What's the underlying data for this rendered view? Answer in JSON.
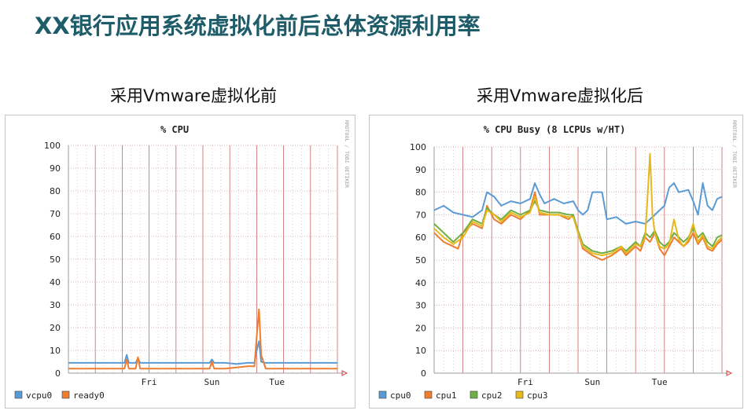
{
  "slide": {
    "title": "XX银行应用系统虚拟化前后总体资源利用率",
    "left_caption": "采用Vmware虚拟化前",
    "right_caption": "采用Vmware虚拟化后"
  },
  "watermark": "RRDTOOL / TOBI OETIKER",
  "colors": {
    "background": "#ffffff",
    "plot_background": "#ffffff",
    "grid": "#c9a0a0",
    "axis": "#9c9c9c",
    "title_text": "#1f5c69"
  },
  "chart_data": [
    {
      "type": "line",
      "title": "% CPU",
      "xlabel": "",
      "ylabel": "",
      "ylim": [
        0,
        100
      ],
      "yticks": [
        0,
        10,
        20,
        30,
        40,
        50,
        60,
        70,
        80,
        90,
        100
      ],
      "xlim": [
        0,
        120
      ],
      "x_tick_labels": [
        {
          "label": "Fri",
          "x": 36
        },
        {
          "label": "Sun",
          "x": 64
        },
        {
          "label": "Tue",
          "x": 93
        }
      ],
      "grid": true,
      "legend_position": "bottom-left",
      "series": [
        {
          "name": "vcpu0",
          "color": "#5b9bd5",
          "points": [
            [
              0,
              4.5
            ],
            [
              10,
              4.5
            ],
            [
              20,
              4.5
            ],
            [
              25,
              4.5
            ],
            [
              26,
              8
            ],
            [
              27,
              4.5
            ],
            [
              30,
              4.5
            ],
            [
              31,
              6.5
            ],
            [
              32,
              4.5
            ],
            [
              40,
              4.5
            ],
            [
              50,
              4.5
            ],
            [
              60,
              4.5
            ],
            [
              63,
              4.5
            ],
            [
              64,
              6
            ],
            [
              65,
              4.5
            ],
            [
              70,
              4.5
            ],
            [
              75,
              4
            ],
            [
              80,
              4.5
            ],
            [
              83,
              4.5
            ],
            [
              84,
              10
            ],
            [
              85,
              14
            ],
            [
              86,
              5
            ],
            [
              88,
              4.5
            ],
            [
              95,
              4.5
            ],
            [
              100,
              4.5
            ],
            [
              110,
              4.5
            ],
            [
              120,
              4.5
            ]
          ]
        },
        {
          "name": "ready0",
          "color": "#ed7d31",
          "points": [
            [
              0,
              2
            ],
            [
              10,
              2
            ],
            [
              20,
              2
            ],
            [
              25,
              2
            ],
            [
              26,
              6
            ],
            [
              27,
              2
            ],
            [
              30,
              2
            ],
            [
              31,
              7
            ],
            [
              32,
              2
            ],
            [
              40,
              2
            ],
            [
              50,
              2
            ],
            [
              60,
              2
            ],
            [
              63,
              2
            ],
            [
              64,
              5
            ],
            [
              65,
              2
            ],
            [
              70,
              2
            ],
            [
              75,
              2.5
            ],
            [
              80,
              3
            ],
            [
              83,
              3
            ],
            [
              84,
              16
            ],
            [
              85,
              28
            ],
            [
              86,
              8
            ],
            [
              88,
              2
            ],
            [
              95,
              2
            ],
            [
              100,
              2
            ],
            [
              110,
              2
            ],
            [
              120,
              2
            ]
          ]
        }
      ]
    },
    {
      "type": "line",
      "title": "% CPU Busy (8 LCPUs w/HT)",
      "xlabel": "",
      "ylabel": "",
      "ylim": [
        0,
        100
      ],
      "yticks": [
        0,
        10,
        20,
        30,
        40,
        50,
        60,
        70,
        80,
        90,
        100
      ],
      "xlim": [
        0,
        120
      ],
      "x_tick_labels": [
        {
          "label": "Fri",
          "x": 38
        },
        {
          "label": "Sun",
          "x": 66
        },
        {
          "label": "Tue",
          "x": 94
        }
      ],
      "grid": true,
      "legend_position": "bottom-left",
      "series": [
        {
          "name": "cpu0",
          "color": "#5b9bd5",
          "points": [
            [
              0,
              72
            ],
            [
              4,
              74
            ],
            [
              8,
              71
            ],
            [
              12,
              70
            ],
            [
              16,
              69
            ],
            [
              20,
              72
            ],
            [
              22,
              80
            ],
            [
              25,
              78
            ],
            [
              28,
              74
            ],
            [
              32,
              76
            ],
            [
              36,
              75
            ],
            [
              40,
              77
            ],
            [
              42,
              84
            ],
            [
              44,
              79
            ],
            [
              46,
              75
            ],
            [
              50,
              77
            ],
            [
              54,
              75
            ],
            [
              58,
              76
            ],
            [
              60,
              72
            ],
            [
              62,
              70
            ],
            [
              64,
              72
            ],
            [
              66,
              80
            ],
            [
              70,
              80
            ],
            [
              72,
              68
            ],
            [
              76,
              69
            ],
            [
              80,
              66
            ],
            [
              84,
              67
            ],
            [
              88,
              66
            ],
            [
              92,
              70
            ],
            [
              94,
              72
            ],
            [
              96,
              74
            ],
            [
              98,
              82
            ],
            [
              100,
              84
            ],
            [
              102,
              80
            ],
            [
              106,
              81
            ],
            [
              108,
              76
            ],
            [
              110,
              70
            ],
            [
              112,
              84
            ],
            [
              114,
              74
            ],
            [
              116,
              72
            ],
            [
              118,
              77
            ],
            [
              120,
              78
            ]
          ]
        },
        {
          "name": "cpu1",
          "color": "#ed7d31",
          "points": [
            [
              0,
              62
            ],
            [
              4,
              58
            ],
            [
              8,
              56
            ],
            [
              10,
              55
            ],
            [
              12,
              62
            ],
            [
              16,
              66
            ],
            [
              20,
              64
            ],
            [
              22,
              74
            ],
            [
              25,
              68
            ],
            [
              28,
              66
            ],
            [
              32,
              70
            ],
            [
              36,
              68
            ],
            [
              40,
              72
            ],
            [
              42,
              80
            ],
            [
              44,
              70
            ],
            [
              48,
              70
            ],
            [
              52,
              70
            ],
            [
              56,
              68
            ],
            [
              58,
              70
            ],
            [
              60,
              62
            ],
            [
              62,
              55
            ],
            [
              66,
              52
            ],
            [
              70,
              50
            ],
            [
              74,
              52
            ],
            [
              78,
              55
            ],
            [
              80,
              52
            ],
            [
              84,
              56
            ],
            [
              86,
              54
            ],
            [
              88,
              60
            ],
            [
              90,
              58
            ],
            [
              92,
              62
            ],
            [
              94,
              55
            ],
            [
              96,
              52
            ],
            [
              98,
              56
            ],
            [
              100,
              60
            ],
            [
              102,
              58
            ],
            [
              104,
              56
            ],
            [
              106,
              58
            ],
            [
              108,
              62
            ],
            [
              110,
              57
            ],
            [
              112,
              60
            ],
            [
              114,
              55
            ],
            [
              116,
              54
            ],
            [
              118,
              57
            ],
            [
              120,
              59
            ]
          ]
        },
        {
          "name": "cpu2",
          "color": "#70ad47",
          "points": [
            [
              0,
              66
            ],
            [
              4,
              62
            ],
            [
              8,
              58
            ],
            [
              12,
              62
            ],
            [
              16,
              68
            ],
            [
              20,
              66
            ],
            [
              22,
              73
            ],
            [
              25,
              70
            ],
            [
              28,
              68
            ],
            [
              32,
              72
            ],
            [
              36,
              70
            ],
            [
              40,
              72
            ],
            [
              42,
              76
            ],
            [
              44,
              72
            ],
            [
              48,
              71
            ],
            [
              52,
              71
            ],
            [
              56,
              70
            ],
            [
              58,
              70
            ],
            [
              60,
              63
            ],
            [
              62,
              57
            ],
            [
              66,
              54
            ],
            [
              70,
              53
            ],
            [
              74,
              54
            ],
            [
              78,
              56
            ],
            [
              80,
              54
            ],
            [
              84,
              58
            ],
            [
              86,
              56
            ],
            [
              88,
              62
            ],
            [
              90,
              60
            ],
            [
              92,
              63
            ],
            [
              94,
              58
            ],
            [
              96,
              56
            ],
            [
              98,
              58
            ],
            [
              100,
              62
            ],
            [
              102,
              60
            ],
            [
              104,
              58
            ],
            [
              106,
              60
            ],
            [
              108,
              64
            ],
            [
              110,
              60
            ],
            [
              112,
              62
            ],
            [
              114,
              58
            ],
            [
              116,
              56
            ],
            [
              118,
              60
            ],
            [
              120,
              61
            ]
          ]
        },
        {
          "name": "cpu3",
          "color": "#e5b81c",
          "points": [
            [
              0,
              64
            ],
            [
              4,
              60
            ],
            [
              8,
              57
            ],
            [
              12,
              60
            ],
            [
              16,
              67
            ],
            [
              20,
              65
            ],
            [
              22,
              72
            ],
            [
              25,
              70
            ],
            [
              28,
              67
            ],
            [
              32,
              71
            ],
            [
              36,
              69
            ],
            [
              40,
              71
            ],
            [
              42,
              78
            ],
            [
              44,
              71
            ],
            [
              48,
              70
            ],
            [
              52,
              70
            ],
            [
              56,
              69
            ],
            [
              58,
              69
            ],
            [
              60,
              62
            ],
            [
              62,
              56
            ],
            [
              66,
              53
            ],
            [
              70,
              52
            ],
            [
              74,
              53
            ],
            [
              78,
              56
            ],
            [
              80,
              53
            ],
            [
              84,
              57
            ],
            [
              86,
              56
            ],
            [
              88,
              60
            ],
            [
              90,
              97
            ],
            [
              91,
              70
            ],
            [
              92,
              62
            ],
            [
              94,
              56
            ],
            [
              96,
              55
            ],
            [
              98,
              57
            ],
            [
              100,
              68
            ],
            [
              102,
              59
            ],
            [
              104,
              56
            ],
            [
              106,
              59
            ],
            [
              108,
              66
            ],
            [
              110,
              58
            ],
            [
              112,
              61
            ],
            [
              114,
              56
            ],
            [
              116,
              55
            ],
            [
              118,
              58
            ],
            [
              120,
              60
            ]
          ]
        }
      ]
    }
  ]
}
